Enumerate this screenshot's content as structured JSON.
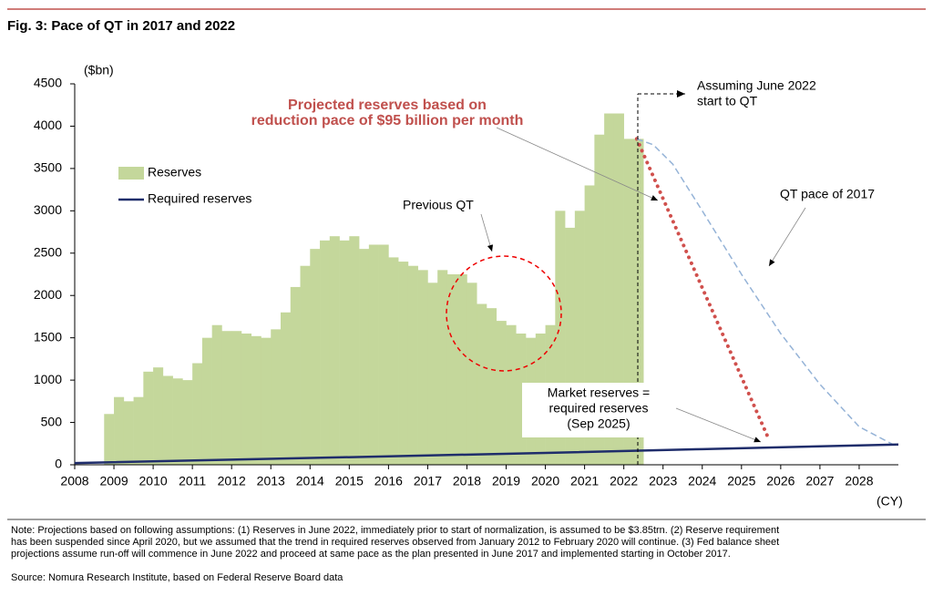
{
  "chart_data": {
    "type": "bar",
    "title": "Fig. 3: Pace of QT in 2017 and 2022",
    "y_unit": "($bn)",
    "x_unit": "(CY)",
    "xlim": [
      2008,
      2029
    ],
    "xticks": [
      2008,
      2009,
      2010,
      2011,
      2012,
      2013,
      2014,
      2015,
      2016,
      2017,
      2018,
      2019,
      2020,
      2021,
      2022,
      2023,
      2024,
      2025,
      2026,
      2027,
      2028
    ],
    "ylim": [
      0,
      4500
    ],
    "yticks": [
      0,
      500,
      1000,
      1500,
      2000,
      2500,
      3000,
      3500,
      4000,
      4500
    ],
    "bar_width": 0.25,
    "series": [
      {
        "name": "Reserves",
        "type": "bar",
        "color": "#c4d79b",
        "x": [
          2008.75,
          2009.0,
          2009.25,
          2009.5,
          2009.75,
          2010.0,
          2010.25,
          2010.5,
          2010.75,
          2011.0,
          2011.25,
          2011.5,
          2011.75,
          2012.0,
          2012.25,
          2012.5,
          2012.75,
          2013.0,
          2013.25,
          2013.5,
          2013.75,
          2014.0,
          2014.25,
          2014.5,
          2014.75,
          2015.0,
          2015.25,
          2015.5,
          2015.75,
          2016.0,
          2016.25,
          2016.5,
          2016.75,
          2017.0,
          2017.25,
          2017.5,
          2017.75,
          2018.0,
          2018.25,
          2018.5,
          2018.75,
          2019.0,
          2019.25,
          2019.5,
          2019.75,
          2020.0,
          2020.25,
          2020.5,
          2020.75,
          2021.0,
          2021.25,
          2021.5,
          2021.75,
          2022.0,
          2022.25
        ],
        "values": [
          600,
          800,
          750,
          800,
          1100,
          1150,
          1050,
          1020,
          1000,
          1200,
          1500,
          1650,
          1580,
          1580,
          1550,
          1520,
          1500,
          1600,
          1800,
          2100,
          2350,
          2550,
          2650,
          2700,
          2650,
          2700,
          2550,
          2600,
          2600,
          2450,
          2400,
          2350,
          2300,
          2150,
          2300,
          2250,
          2250,
          2150,
          1900,
          1850,
          1700,
          1650,
          1550,
          1500,
          1550,
          1650,
          3000,
          2800,
          3000,
          3300,
          3900,
          4150,
          4150,
          3850,
          3850
        ]
      },
      {
        "name": "Required reserves",
        "type": "line",
        "color": "#1f2d6b",
        "x": [
          2008,
          2012,
          2016,
          2020,
          2024,
          2029
        ],
        "values": [
          20,
          60,
          100,
          140,
          185,
          240
        ]
      }
    ],
    "projections": [
      {
        "color": "#d0504d",
        "style": "dotted",
        "x": [
          2022.33,
          2025.67
        ],
        "values": [
          3850,
          330
        ]
      },
      {
        "color": "#95b3d7",
        "style": "dashed",
        "x": [
          2022.33,
          2022.75,
          2023.25,
          2024,
          2025,
          2026,
          2027,
          2028,
          2028.9
        ],
        "values": [
          3850,
          3780,
          3550,
          3000,
          2250,
          1550,
          950,
          450,
          230
        ]
      }
    ],
    "annotations": {
      "projected": [
        "Projected reserves based on",
        "reduction pace of $95 billion per month"
      ],
      "assuming": [
        "Assuming June 2022",
        "start to QT"
      ],
      "previous_qt": "Previous QT",
      "qt_2017": "QT pace of 2017",
      "market": [
        "Market reserves =",
        "required reserves",
        "(Sep 2025)"
      ]
    },
    "note": [
      "Note: Projections based on following assumptions: (1) Reserves in June 2022, immediately prior to start of normalization, is assumed to be $3.85trn. (2) Reserve requirement",
      "has been suspended since April 2020, but we assumed that the trend in required reserves observed from January 2012 to February 2020 will continue. (3) Fed balance sheet",
      "projections assume run-off will commence in June 2022 and proceed at same pace as the plan presented in June 2017 and implemented starting in October 2017."
    ],
    "source": "Source: Nomura Research Institute, based on Federal Reserve Board data"
  }
}
